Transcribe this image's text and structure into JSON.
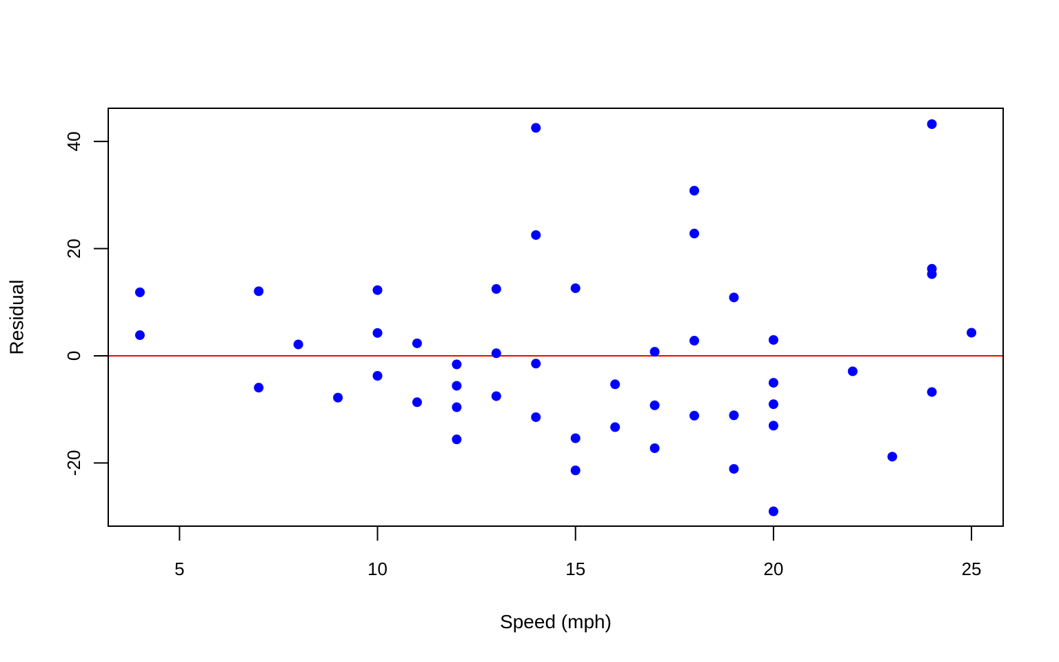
{
  "chart_data": {
    "type": "scatter",
    "title": "",
    "xlabel": "Speed (mph)",
    "ylabel": "Residual",
    "xlim": [
      3.2,
      25.8
    ],
    "ylim": [
      -31.8,
      46.2
    ],
    "x_ticks": [
      5,
      10,
      15,
      20,
      25
    ],
    "x_tick_labels": [
      "5",
      "10",
      "15",
      "20",
      "25"
    ],
    "y_ticks": [
      -20,
      0,
      20,
      40
    ],
    "y_tick_labels": [
      "-20",
      "0",
      "20",
      "40"
    ],
    "grid": false,
    "point_color": "#0000FF",
    "reference_line": {
      "y": 0,
      "color": "#FF0000"
    },
    "points": [
      {
        "x": 4,
        "y": 3.85
      },
      {
        "x": 4,
        "y": 11.85
      },
      {
        "x": 7,
        "y": -5.95
      },
      {
        "x": 7,
        "y": 12.05
      },
      {
        "x": 8,
        "y": 2.12
      },
      {
        "x": 9,
        "y": -7.81
      },
      {
        "x": 10,
        "y": -3.74
      },
      {
        "x": 10,
        "y": 4.26
      },
      {
        "x": 10,
        "y": 12.26
      },
      {
        "x": 11,
        "y": -8.67
      },
      {
        "x": 11,
        "y": 2.33
      },
      {
        "x": 12,
        "y": -15.6
      },
      {
        "x": 12,
        "y": -9.6
      },
      {
        "x": 12,
        "y": -5.6
      },
      {
        "x": 12,
        "y": -1.6
      },
      {
        "x": 13,
        "y": -7.53
      },
      {
        "x": 13,
        "y": 0.47
      },
      {
        "x": 13,
        "y": 12.47
      },
      {
        "x": 14,
        "y": -11.46
      },
      {
        "x": 14,
        "y": -1.46
      },
      {
        "x": 14,
        "y": 22.54
      },
      {
        "x": 14,
        "y": 42.54
      },
      {
        "x": 15,
        "y": -21.39
      },
      {
        "x": 15,
        "y": -15.39
      },
      {
        "x": 15,
        "y": 12.61
      },
      {
        "x": 16,
        "y": -13.32
      },
      {
        "x": 16,
        "y": -5.32
      },
      {
        "x": 17,
        "y": -17.25
      },
      {
        "x": 17,
        "y": -9.25
      },
      {
        "x": 17,
        "y": 0.75
      },
      {
        "x": 18,
        "y": -11.18
      },
      {
        "x": 18,
        "y": 2.82
      },
      {
        "x": 18,
        "y": 22.82
      },
      {
        "x": 18,
        "y": 30.82
      },
      {
        "x": 19,
        "y": -21.11
      },
      {
        "x": 19,
        "y": -11.11
      },
      {
        "x": 19,
        "y": 10.89
      },
      {
        "x": 20,
        "y": -29.04
      },
      {
        "x": 20,
        "y": -13.04
      },
      {
        "x": 20,
        "y": -9.04
      },
      {
        "x": 20,
        "y": -5.04
      },
      {
        "x": 20,
        "y": 2.96
      },
      {
        "x": 22,
        "y": -2.9
      },
      {
        "x": 23,
        "y": -18.83
      },
      {
        "x": 24,
        "y": -6.76
      },
      {
        "x": 24,
        "y": 15.24
      },
      {
        "x": 24,
        "y": 16.24
      },
      {
        "x": 24,
        "y": 43.24
      },
      {
        "x": 25,
        "y": 4.31
      }
    ]
  }
}
